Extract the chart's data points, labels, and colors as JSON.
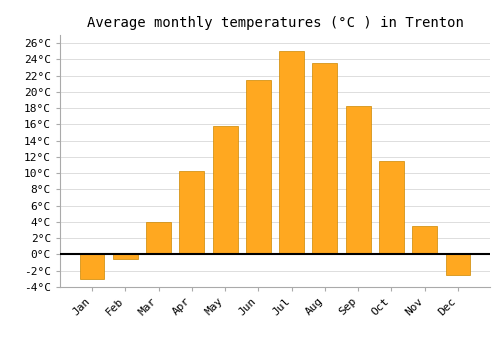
{
  "title": "Average monthly temperatures (°C ) in Trenton",
  "months": [
    "Jan",
    "Feb",
    "Mar",
    "Apr",
    "May",
    "Jun",
    "Jul",
    "Aug",
    "Sep",
    "Oct",
    "Nov",
    "Dec"
  ],
  "values": [
    -3.0,
    -0.5,
    4.0,
    10.3,
    15.8,
    21.5,
    25.0,
    23.5,
    18.3,
    11.5,
    3.5,
    -2.5
  ],
  "bar_color_pos": "#FFA820",
  "bar_color_neg": "#FFA820",
  "ylim": [
    -4,
    27
  ],
  "yticks": [
    -4,
    -2,
    0,
    2,
    4,
    6,
    8,
    10,
    12,
    14,
    16,
    18,
    20,
    22,
    24,
    26
  ],
  "ytick_labels": [
    "-4°C",
    "-2°C",
    "0°C",
    "2°C",
    "4°C",
    "6°C",
    "8°C",
    "10°C",
    "12°C",
    "14°C",
    "16°C",
    "18°C",
    "20°C",
    "22°C",
    "24°C",
    "26°C"
  ],
  "grid_color": "#dddddd",
  "background_color": "#ffffff",
  "bar_edge_color": "#cc8800",
  "zero_line_color": "#000000",
  "title_fontsize": 10,
  "tick_fontsize": 8,
  "font_family": "monospace",
  "bar_width": 0.75
}
